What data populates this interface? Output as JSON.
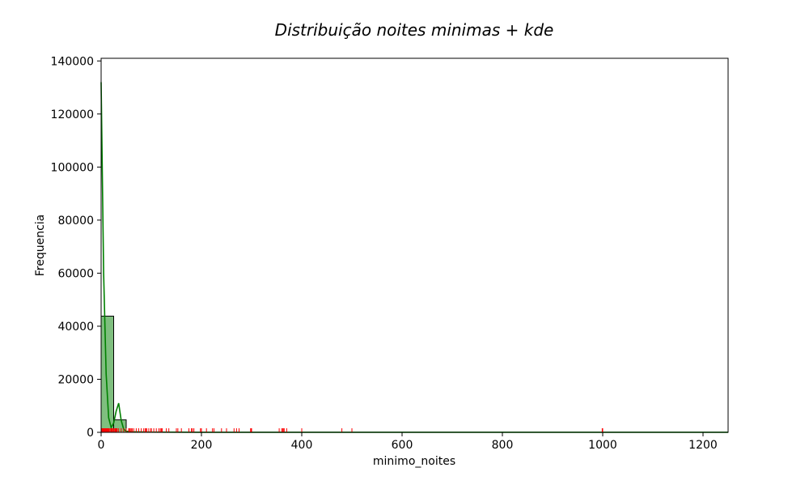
{
  "chart_data": {
    "type": "bar",
    "title": "Distribuição noites minimas + kde",
    "xlabel": "minimo_noites",
    "ylabel": "Frequencia",
    "xlim": [
      0,
      1250
    ],
    "ylim": [
      0,
      141000
    ],
    "x_ticks": [
      0,
      200,
      400,
      600,
      800,
      1000,
      1200
    ],
    "y_ticks": [
      0,
      20000,
      40000,
      60000,
      80000,
      100000,
      120000,
      140000
    ],
    "grid": false,
    "legend": "none",
    "histogram": {
      "bin_width": 25,
      "bins": [
        {
          "x0": 0,
          "x1": 25,
          "count": 43800
        },
        {
          "x0": 25,
          "x1": 50,
          "count": 4700
        },
        {
          "x0": 50,
          "x1": 75,
          "count": 120
        },
        {
          "x0": 75,
          "x1": 100,
          "count": 60
        },
        {
          "x0": 100,
          "x1": 125,
          "count": 40
        }
      ],
      "fill_color": "#7fbf7f",
      "edge_color": "#000000"
    },
    "kde": {
      "color": "#008000",
      "x": [
        0,
        5,
        10,
        15,
        20,
        25,
        30,
        35,
        40,
        45,
        50,
        60,
        80,
        100,
        150,
        200,
        300,
        400,
        600,
        800,
        1000,
        1250
      ],
      "y": [
        132000,
        60000,
        22000,
        5500,
        1800,
        3500,
        8000,
        11000,
        4500,
        1200,
        400,
        200,
        120,
        80,
        50,
        30,
        20,
        10,
        5,
        5,
        20,
        5
      ]
    },
    "rug": {
      "color": "#ff0000",
      "x": [
        1,
        2,
        3,
        4,
        5,
        6,
        7,
        8,
        9,
        10,
        11,
        12,
        13,
        14,
        15,
        16,
        18,
        20,
        21,
        22,
        24,
        25,
        26,
        28,
        29,
        30,
        31,
        32,
        35,
        40,
        45,
        50,
        55,
        56,
        58,
        60,
        62,
        65,
        70,
        75,
        80,
        85,
        88,
        90,
        91,
        95,
        99,
        100,
        105,
        110,
        115,
        118,
        120,
        122,
        130,
        135,
        150,
        153,
        160,
        175,
        180,
        182,
        185,
        198,
        200,
        210,
        222,
        225,
        240,
        250,
        265,
        270,
        275,
        298,
        299,
        300,
        355,
        360,
        362,
        364,
        365,
        370,
        400,
        480,
        500,
        999,
        1000
      ]
    }
  }
}
